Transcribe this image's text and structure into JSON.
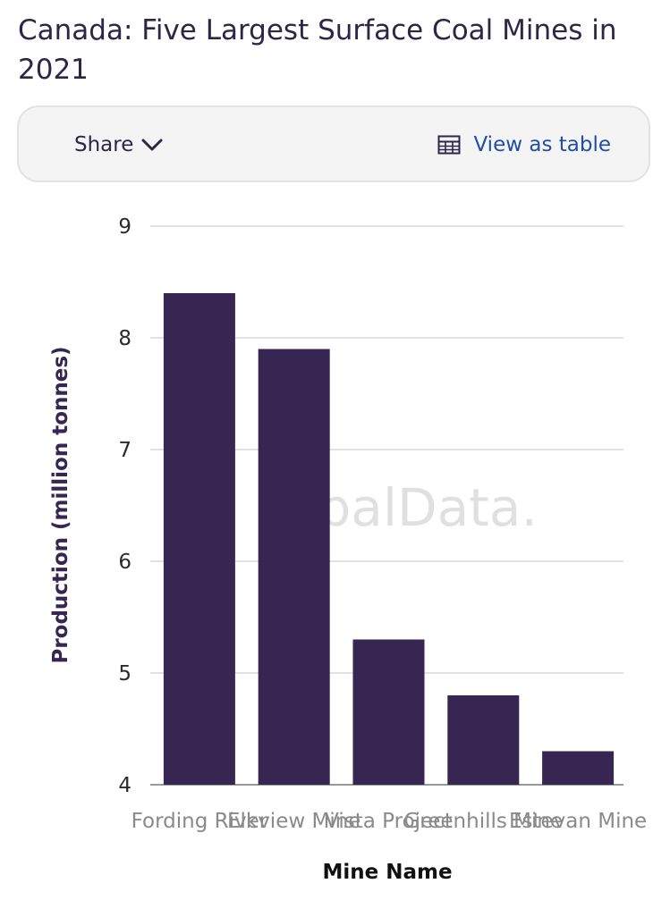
{
  "title": "Canada: Five Largest Surface Coal Mines in 2021",
  "toolbar": {
    "share_label": "Share",
    "share_icon": "chevron-down-icon",
    "table_label": "View as table",
    "table_icon": "table-grid-icon"
  },
  "colors": {
    "bar": "#372552",
    "title": "#2f2547",
    "link": "#1f4ea8",
    "grid": "#d9d9d9"
  },
  "watermark": "obalData.",
  "chart_data": {
    "type": "bar",
    "categories": [
      "Fording River",
      "Elkview Mine",
      "Vista Project",
      "Greenhills Mine",
      "Estevan Mine"
    ],
    "values": [
      8.4,
      7.9,
      5.3,
      4.8,
      4.3
    ],
    "xlabel": "Mine Name",
    "ylabel": "Production (million tonnes)",
    "ylim": [
      4,
      9
    ],
    "yticks": [
      "9",
      "8",
      "7",
      "6",
      "5",
      "4"
    ],
    "grid": true
  }
}
